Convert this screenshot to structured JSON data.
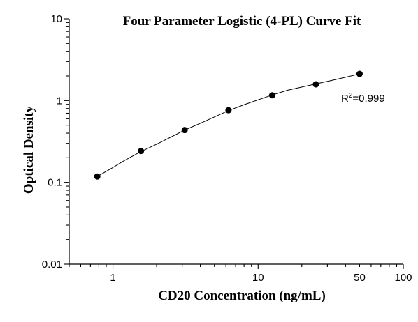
{
  "chart_data": {
    "type": "scatter",
    "title": "Four Parameter Logistic (4-PL) Curve Fit",
    "xlabel": "CD20 Concentration (ng/mL)",
    "ylabel": "Optical Density",
    "x_scale": "log",
    "y_scale": "log",
    "xlim": [
      0.5,
      100
    ],
    "ylim": [
      0.01,
      10
    ],
    "x_tick_labels": [
      "1",
      "10",
      "50",
      "100"
    ],
    "x_tick_values": [
      1,
      10,
      50,
      100
    ],
    "y_tick_labels": [
      "0.01",
      "0.1",
      "1",
      "10"
    ],
    "y_tick_values": [
      0.01,
      0.1,
      1,
      10
    ],
    "grid": false,
    "x": [
      0.78,
      1.56,
      3.12,
      6.25,
      12.5,
      25,
      50
    ],
    "y": [
      0.118,
      0.242,
      0.436,
      0.762,
      1.16,
      1.58,
      2.12
    ],
    "fit_curve": {
      "x": [
        0.78,
        1.0,
        1.2,
        1.56,
        2.0,
        3.12,
        4.0,
        6.25,
        8.0,
        12.5,
        16.0,
        25,
        32,
        50
      ],
      "y": [
        0.118,
        0.152,
        0.185,
        0.238,
        0.293,
        0.436,
        0.527,
        0.755,
        0.89,
        1.17,
        1.34,
        1.6,
        1.76,
        2.12
      ]
    },
    "annotation": {
      "r_prefix": "R",
      "r_sup": "2",
      "r_value": "=0.999"
    }
  }
}
